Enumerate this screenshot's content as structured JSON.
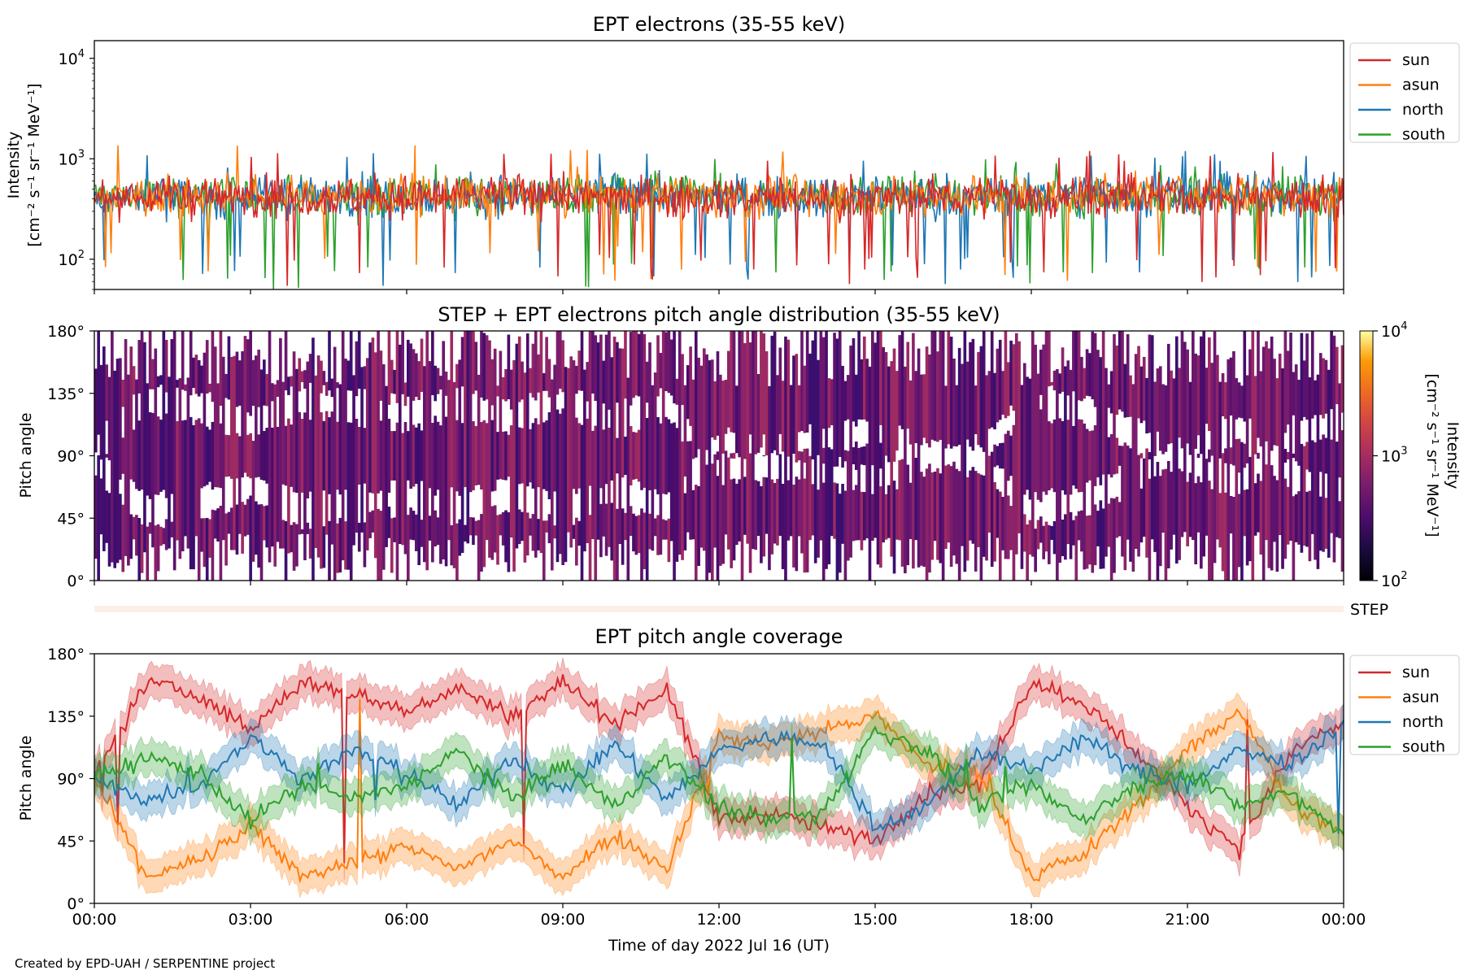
{
  "figure": {
    "credit": "Created by EPD-UAH / SERPENTINE project",
    "xlabel": "Time of day 2022 Jul 16 (UT)",
    "xticks": [
      "00:00",
      "03:00",
      "06:00",
      "09:00",
      "12:00",
      "15:00",
      "18:00",
      "21:00",
      "00:00"
    ]
  },
  "colors": {
    "sun": "#d62728",
    "asun": "#ff7f0e",
    "north": "#1f77b4",
    "south": "#2ca02c"
  },
  "chart_data": [
    {
      "type": "line",
      "title": "EPT electrons (35-55 keV)",
      "ylabel_line1": "Intensity",
      "ylabel_line2": "[cm⁻² s⁻¹ sr⁻¹ MeV⁻¹]",
      "yscale": "log",
      "ylim": [
        50,
        15000
      ],
      "yticks": [
        {
          "value": 100,
          "base": "10",
          "exp": "2"
        },
        {
          "value": 1000,
          "base": "10",
          "exp": "3"
        },
        {
          "value": 10000,
          "base": "10",
          "exp": "4"
        }
      ],
      "xlim_hours": [
        0,
        24
      ],
      "legend": [
        "sun",
        "asun",
        "north",
        "south"
      ],
      "legend_position": "outside-right",
      "series": [
        {
          "name": "sun",
          "typical": 420,
          "range": [
            50,
            1200
          ]
        },
        {
          "name": "asun",
          "typical": 430,
          "range": [
            60,
            1400
          ]
        },
        {
          "name": "north",
          "typical": 430,
          "range": [
            50,
            1200
          ]
        },
        {
          "name": "south",
          "typical": 430,
          "range": [
            50,
            1050
          ]
        }
      ]
    },
    {
      "type": "heatmap",
      "title": "STEP + EPT electrons pitch angle distribution (35-55 keV)",
      "ylabel": "Pitch angle",
      "yticks": [
        "0°",
        "45°",
        "90°",
        "135°",
        "180°"
      ],
      "ylim": [
        0,
        180
      ],
      "colorbar": {
        "label_line1": "Intensity",
        "label_line2": "[cm⁻² s⁻¹ sr⁻¹ MeV⁻¹]",
        "scale": "log",
        "range": [
          100,
          10000
        ],
        "ticks": [
          {
            "base": "10",
            "exp": "2"
          },
          {
            "base": "10",
            "exp": "3"
          },
          {
            "base": "10",
            "exp": "4"
          }
        ],
        "colormap": "inferno"
      },
      "step_label": "STEP"
    },
    {
      "type": "line",
      "title": "EPT pitch angle coverage",
      "ylabel": "Pitch angle",
      "yticks": [
        "0°",
        "45°",
        "90°",
        "135°",
        "180°"
      ],
      "ylim": [
        0,
        180
      ],
      "legend": [
        "sun",
        "asun",
        "north",
        "south"
      ],
      "legend_position": "outside-right",
      "series_hours": [
        0,
        1,
        2,
        3,
        4,
        5,
        6,
        7,
        8,
        9,
        10,
        11,
        12,
        13,
        14,
        15,
        16,
        17,
        18,
        19,
        20,
        21,
        22,
        23,
        24
      ],
      "series": [
        {
          "name": "sun",
          "values": [
            90,
            160,
            150,
            125,
            160,
            150,
            140,
            155,
            135,
            160,
            130,
            155,
            60,
            65,
            55,
            45,
            80,
            85,
            160,
            145,
            110,
            70,
            40,
            110,
            130
          ]
        },
        {
          "name": "asun",
          "values": [
            90,
            20,
            30,
            55,
            20,
            30,
            40,
            25,
            45,
            20,
            50,
            25,
            120,
            115,
            125,
            135,
            100,
            95,
            20,
            35,
            70,
            110,
            140,
            70,
            50
          ]
        },
        {
          "name": "north",
          "values": [
            90,
            75,
            85,
            120,
            90,
            110,
            95,
            70,
            105,
            80,
            115,
            75,
            110,
            120,
            115,
            55,
            70,
            110,
            95,
            120,
            95,
            85,
            110,
            100,
            130
          ]
        },
        {
          "name": "south",
          "values": [
            90,
            105,
            95,
            60,
            85,
            75,
            85,
            110,
            75,
            100,
            70,
            105,
            70,
            60,
            65,
            125,
            110,
            70,
            85,
            60,
            85,
            95,
            70,
            80,
            50
          ]
        }
      ]
    }
  ]
}
